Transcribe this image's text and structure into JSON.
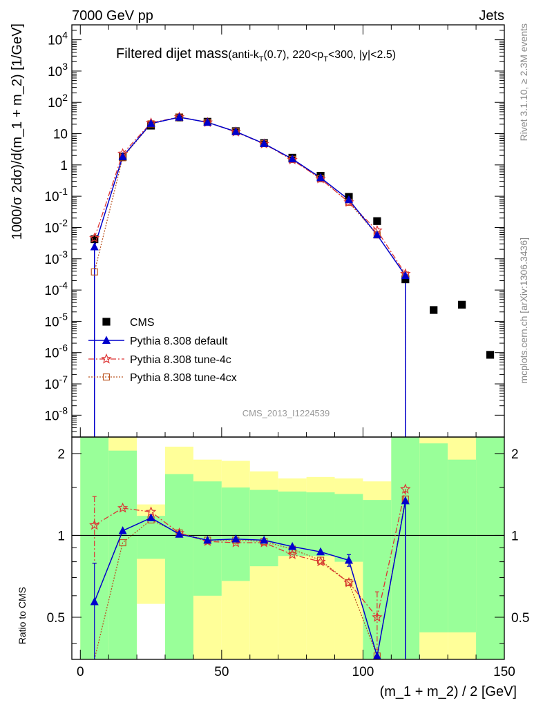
{
  "header": {
    "energy_label": "7000 GeV pp",
    "process_label": "Jets",
    "title_main": "Filtered dijet mass",
    "title_sub": "(anti-k",
    "title_sub_k_sub": "T",
    "title_sub_mid": "(0.7), 220<p",
    "title_sub_p_sub": "T",
    "title_sub_end": "<300, |y|<2.5)",
    "watermark": "CMS_2013_I1224539",
    "side_label_top": "Rivet 3.1.10, ≥ 2.3M events",
    "side_label_bottom": "mcplots.cern.ch [arXiv:1306.3436]"
  },
  "colors": {
    "cms": "#000000",
    "default": "#0000cc",
    "tune4c": "#dd3333",
    "tune4cx": "#bb5522",
    "band_green": "#99ff99",
    "band_yellow": "#ffff99"
  },
  "chart_data": [
    {
      "type": "scatter",
      "ylabel": "1000/σ 2dσ)/d(m_1 + m_2) [1/GeV]",
      "yscale": "log",
      "ylim": [
        2e-09,
        30000
      ],
      "xlim": [
        -3,
        150
      ],
      "ytick_labels": [
        "10^-8",
        "10^-7",
        "10^-6",
        "10^-5",
        "10^-4",
        "10^-3",
        "10^-2",
        "10^-1",
        "1",
        "10",
        "10^2",
        "10^3",
        "10^4"
      ],
      "legend_position": "lower-left",
      "series": [
        {
          "name": "CMS",
          "x": [
            5,
            15,
            25,
            35,
            45,
            55,
            65,
            75,
            85,
            95,
            105,
            115,
            125,
            135,
            145
          ],
          "values": [
            0.0042,
            1.8,
            18,
            33,
            24,
            12,
            5,
            1.7,
            0.45,
            0.095,
            0.016,
            0.00022,
            2.3e-05,
            3.4e-05,
            8.5e-07
          ]
        },
        {
          "name": "Pythia 8.308 default",
          "x": [
            5,
            15,
            25,
            35,
            45,
            55,
            65,
            75,
            85,
            95,
            105,
            115
          ],
          "values": [
            0.0024,
            1.85,
            21,
            33.5,
            23,
            11.6,
            4.8,
            1.55,
            0.39,
            0.077,
            0.0058,
            0.00029
          ]
        },
        {
          "name": "Pythia 8.308 tune-4c",
          "x": [
            5,
            15,
            25,
            35,
            45,
            55,
            65,
            75,
            85,
            95,
            105,
            115
          ],
          "values": [
            0.0046,
            2.3,
            22,
            34,
            22.8,
            11.3,
            4.7,
            1.45,
            0.36,
            0.064,
            0.008,
            0.00033
          ]
        },
        {
          "name": "Pythia 8.308 tune-4cx",
          "x": [
            5,
            15,
            25,
            35,
            45,
            55,
            65,
            75,
            85,
            95,
            105,
            115
          ],
          "values": [
            0.00038,
            1.7,
            20.5,
            34,
            23,
            11.6,
            4.8,
            1.5,
            0.36,
            0.064,
            0.0058,
            0.0003
          ]
        }
      ]
    },
    {
      "type": "line",
      "ylabel": "Ratio to CMS",
      "xlabel": "(m_1 + m_2) / 2 [GeV]",
      "ylim": [
        0.35,
        2.3
      ],
      "xlim": [
        -3,
        150
      ],
      "xtick_labels": [
        "0",
        "50",
        "100",
        "150"
      ],
      "ytick_labels": [
        "0.5",
        "1",
        "2"
      ],
      "bands": {
        "edges": [
          0,
          10,
          20,
          30,
          40,
          50,
          60,
          70,
          80,
          90,
          100,
          110,
          120,
          130,
          140,
          150
        ],
        "yellow_low": [
          0.35,
          0.35,
          0.56,
          0.35,
          0.35,
          0.35,
          0.35,
          0.35,
          0.35,
          0.35,
          0.35,
          0.35,
          0.35,
          0.35,
          0.35
        ],
        "yellow_high": [
          2.3,
          2.3,
          1.3,
          2.12,
          1.9,
          1.88,
          1.72,
          1.62,
          1.64,
          1.62,
          1.58,
          2.3,
          2.3,
          2.3,
          2.3
        ],
        "green_low": [
          0.35,
          0.35,
          0.82,
          0.35,
          0.6,
          0.68,
          0.77,
          0.84,
          0.84,
          0.8,
          0.35,
          0.35,
          0.44,
          0.44,
          0.35
        ],
        "green_high": [
          2.3,
          2.05,
          1.18,
          1.68,
          1.58,
          1.5,
          1.47,
          1.45,
          1.44,
          1.42,
          1.35,
          2.3,
          2.18,
          1.9,
          2.3
        ]
      },
      "series": [
        {
          "name": "Pythia 8.308 default",
          "x": [
            5,
            15,
            25,
            35,
            45,
            55,
            65,
            75,
            85,
            95,
            105,
            115
          ],
          "values": [
            0.57,
            1.04,
            1.16,
            1.01,
            0.96,
            0.97,
            0.96,
            0.91,
            0.87,
            0.81,
            0.36,
            1.34
          ],
          "err": [
            0.22,
            0,
            0,
            0,
            0,
            0,
            0,
            0,
            0,
            0.04,
            0,
            0
          ]
        },
        {
          "name": "Pythia 8.308 tune-4c",
          "x": [
            5,
            15,
            25,
            35,
            45,
            55,
            65,
            75,
            85,
            95,
            105,
            115
          ],
          "values": [
            1.09,
            1.26,
            1.22,
            1.02,
            0.95,
            0.94,
            0.94,
            0.85,
            0.8,
            0.67,
            0.5,
            1.48
          ],
          "err": [
            0.3,
            0,
            0,
            0,
            0,
            0,
            0,
            0,
            0,
            0,
            0.12,
            0
          ]
        },
        {
          "name": "Pythia 8.308 tune-4cx",
          "x": [
            5,
            15,
            25,
            35,
            45,
            55,
            65,
            75,
            85,
            95,
            105,
            115
          ],
          "values": [
            0.09,
            0.94,
            1.14,
            1.02,
            0.96,
            0.96,
            0.95,
            0.89,
            0.81,
            0.67,
            0.36,
            1.36
          ],
          "err": [
            0,
            0,
            0,
            0,
            0,
            0,
            0,
            0,
            0,
            0,
            0,
            0
          ]
        }
      ]
    }
  ]
}
